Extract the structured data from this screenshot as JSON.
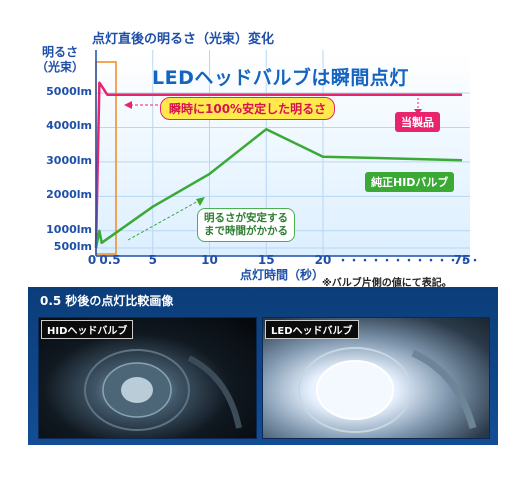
{
  "chart_data": {
    "type": "line",
    "title": "点灯直後の明るさ（光束）変化",
    "headline": "LEDヘッドバルブは瞬間点灯",
    "ylabel_line1": "明るさ",
    "ylabel_line2": "（光束）",
    "xlabel": "点灯時間（秒）",
    "yticks": [
      "5000lm",
      "4000lm",
      "3000lm",
      "2000lm",
      "1000lm",
      "500lm"
    ],
    "xticks": [
      "0",
      "0.5",
      "5",
      "10",
      "15",
      "20",
      "75"
    ],
    "x_break": "・・・・・・・・・・・・・",
    "grid": true,
    "series": [
      {
        "name": "当製品",
        "color": "#e8246c",
        "points": [
          [
            0,
            500
          ],
          [
            0.3,
            5300
          ],
          [
            0.5,
            5200
          ],
          [
            1,
            4950
          ],
          [
            5,
            4950
          ],
          [
            20,
            4950
          ],
          [
            75,
            4950
          ]
        ]
      },
      {
        "name": "純正HIDバルブ",
        "color": "#3aaa35",
        "points": [
          [
            0,
            500
          ],
          [
            0.3,
            1000
          ],
          [
            0.5,
            650
          ],
          [
            2,
            1000
          ],
          [
            5,
            1700
          ],
          [
            10,
            2650
          ],
          [
            15,
            3950
          ],
          [
            20,
            3150
          ],
          [
            75,
            3050
          ]
        ]
      }
    ],
    "annotations": {
      "led": "瞬時に100%安定した明るさ",
      "hid_line1": "明るさが安定する",
      "hid_line2": "まで時間がかかる"
    },
    "highlight_window": "0.5",
    "footnote": "※バルブ片側の値にて表記。"
  },
  "comparison": {
    "title": "0.5 秒後の点灯比較画像",
    "left_label": "HIDヘッドバルブ",
    "right_label": "LEDヘッドバルブ"
  }
}
